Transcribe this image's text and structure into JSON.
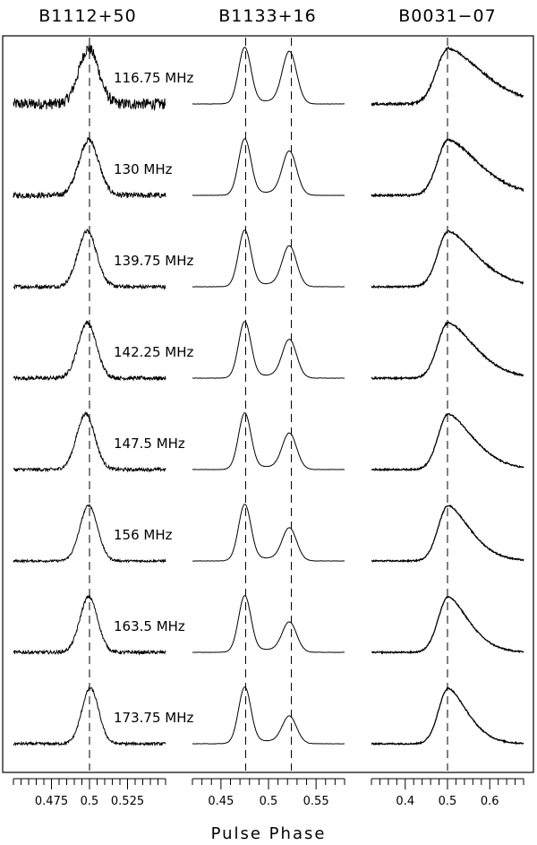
{
  "chart_data": {
    "type": "line",
    "xlabel": "Pulse Phase",
    "frequencies_mhz": [
      "116.75",
      "130",
      "139.75",
      "142.25",
      "147.5",
      "156",
      "163.5",
      "173.75"
    ],
    "frequency_unit": "MHz",
    "panels": [
      {
        "pulsar": "B1112+50",
        "xlim": [
          0.45,
          0.55
        ],
        "ticks": [
          0.475,
          0.5,
          0.525
        ],
        "tick_labels": [
          "0.475",
          "0.5",
          "0.525"
        ],
        "reference_phases": [
          0.5
        ],
        "component_centers": [
          0.4995,
          0.4995,
          0.4985,
          0.4985,
          0.4975,
          0.4995,
          0.4995,
          0.5005
        ],
        "component_widths": [
          0.0065,
          0.0065,
          0.0062,
          0.006,
          0.006,
          0.0058,
          0.0058,
          0.0055
        ],
        "noise_level": [
          0.1,
          0.05,
          0.035,
          0.035,
          0.03,
          0.02,
          0.03,
          0.025
        ]
      },
      {
        "pulsar": "B1133+16",
        "xlim": [
          0.42,
          0.58
        ],
        "ticks": [
          0.45,
          0.5,
          0.55
        ],
        "tick_labels": [
          "0.45",
          "0.5",
          "0.55"
        ],
        "reference_phases": [
          0.476,
          0.524
        ],
        "leading_component_phase": 0.475,
        "trailing_component_phase": 0.522,
        "trailing_amplitudes": [
          0.93,
          0.78,
          0.72,
          0.68,
          0.64,
          0.58,
          0.53,
          0.48
        ],
        "noise_level": [
          0.003,
          0.003,
          0.003,
          0.003,
          0.003,
          0.003,
          0.003,
          0.003
        ]
      },
      {
        "pulsar": "B0031−07",
        "xlim": [
          0.32,
          0.68
        ],
        "ticks": [
          0.4,
          0.5,
          0.6
        ],
        "tick_labels": [
          "0.4",
          "0.5",
          "0.6"
        ],
        "reference_phases": [
          0.5
        ],
        "rise_width": [
          0.028,
          0.026,
          0.025,
          0.025,
          0.024,
          0.024,
          0.024,
          0.023
        ],
        "tail_width": [
          0.075,
          0.068,
          0.062,
          0.058,
          0.055,
          0.048,
          0.045,
          0.042
        ],
        "noise_level": [
          0.02,
          0.018,
          0.015,
          0.015,
          0.013,
          0.012,
          0.012,
          0.012
        ]
      }
    ]
  }
}
